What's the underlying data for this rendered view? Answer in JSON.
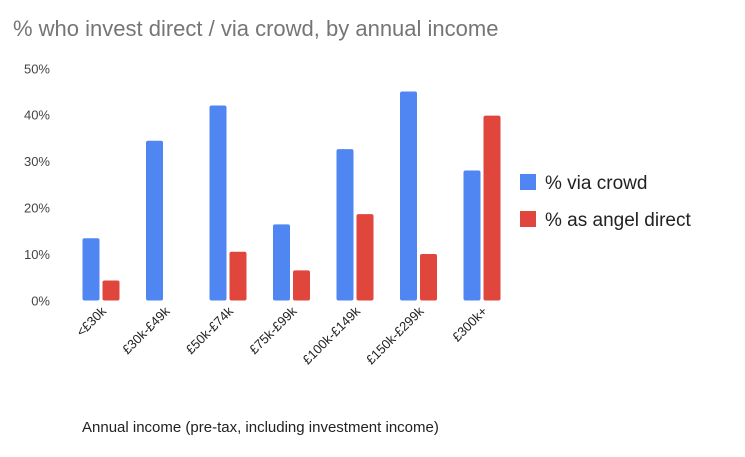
{
  "chart_data": {
    "type": "bar",
    "title": "% who invest direct / via crowd, by annual income",
    "xlabel": "Annual income (pre-tax, including investment income)",
    "ylabel": "",
    "ylim": [
      0,
      50
    ],
    "yticks": [
      "0%",
      "10%",
      "20%",
      "30%",
      "40%",
      "50%"
    ],
    "grid": false,
    "legend_position": "right",
    "categories": [
      "<£30k",
      "£30k-£49k",
      "£50k-£74k",
      "£75k-£99k",
      "£100k-£149k",
      "£150k-£299k",
      "£300k+"
    ],
    "series": [
      {
        "name": "% via crowd",
        "color": "#5086f2",
        "values": [
          13.4,
          34.4,
          42.0,
          16.4,
          32.6,
          45.0,
          28.0
        ]
      },
      {
        "name": "% as angel direct",
        "color": "#e0463c",
        "values": [
          4.3,
          0,
          10.5,
          6.5,
          18.6,
          10.0,
          39.8
        ]
      }
    ]
  }
}
